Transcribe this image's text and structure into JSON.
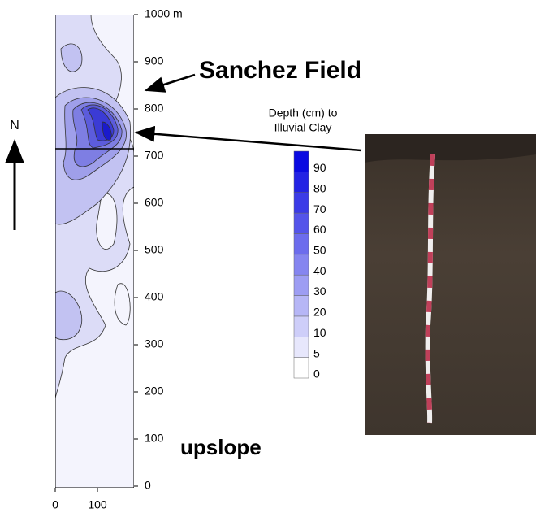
{
  "figure": {
    "map_yticks": [
      "0",
      "100",
      "200",
      "300",
      "400",
      "500",
      "600",
      "700",
      "800",
      "900",
      "1000 m"
    ],
    "map_xticks": [
      "0",
      "100"
    ],
    "north": "N",
    "field_label": "Sanchez Field",
    "slope_label": "upslope",
    "colorbar_title": [
      "Depth (cm) to",
      "Illuvial Clay"
    ],
    "colorbar_labels": [
      "0",
      "5",
      "10",
      "20",
      "30",
      "40",
      "50",
      "60",
      "70",
      "80",
      "90"
    ]
  }
}
